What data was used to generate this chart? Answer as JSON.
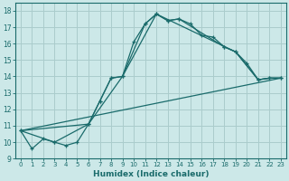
{
  "xlabel": "Humidex (Indice chaleur)",
  "background_color": "#cce8e8",
  "grid_color": "#aacccc",
  "line_color": "#1a6b6b",
  "xlim": [
    -0.5,
    23.5
  ],
  "ylim": [
    9,
    18.5
  ],
  "yticks": [
    9,
    10,
    11,
    12,
    13,
    14,
    15,
    16,
    17,
    18
  ],
  "xticks": [
    0,
    1,
    2,
    3,
    4,
    5,
    6,
    7,
    8,
    9,
    10,
    11,
    12,
    13,
    14,
    15,
    16,
    17,
    18,
    19,
    20,
    21,
    22,
    23
  ],
  "series0_x": [
    0,
    1,
    2,
    3,
    4,
    5,
    6,
    7,
    8,
    9,
    10,
    11,
    12,
    13,
    14,
    15,
    16,
    17,
    18,
    19,
    20,
    21,
    22,
    23
  ],
  "series0_y": [
    10.7,
    9.6,
    10.2,
    10.0,
    9.8,
    10.0,
    11.1,
    12.5,
    13.9,
    14.0,
    16.1,
    17.2,
    17.8,
    17.4,
    17.5,
    17.2,
    16.5,
    16.4,
    15.8,
    15.5,
    14.8,
    13.8,
    13.9,
    13.9
  ],
  "series1_x": [
    0,
    3,
    6,
    7,
    8,
    9,
    11,
    12,
    13,
    14,
    18,
    19,
    21,
    22,
    23
  ],
  "series1_y": [
    10.7,
    10.0,
    11.1,
    12.5,
    13.9,
    14.0,
    17.2,
    17.8,
    17.4,
    17.5,
    15.8,
    15.5,
    13.8,
    13.9,
    13.9
  ],
  "series2_x": [
    0,
    23
  ],
  "series2_y": [
    10.7,
    13.9
  ],
  "series3_x": [
    0,
    6,
    9,
    12,
    19,
    21,
    22,
    23
  ],
  "series3_y": [
    10.7,
    11.1,
    14.0,
    17.8,
    15.5,
    13.8,
    13.9,
    13.9
  ]
}
